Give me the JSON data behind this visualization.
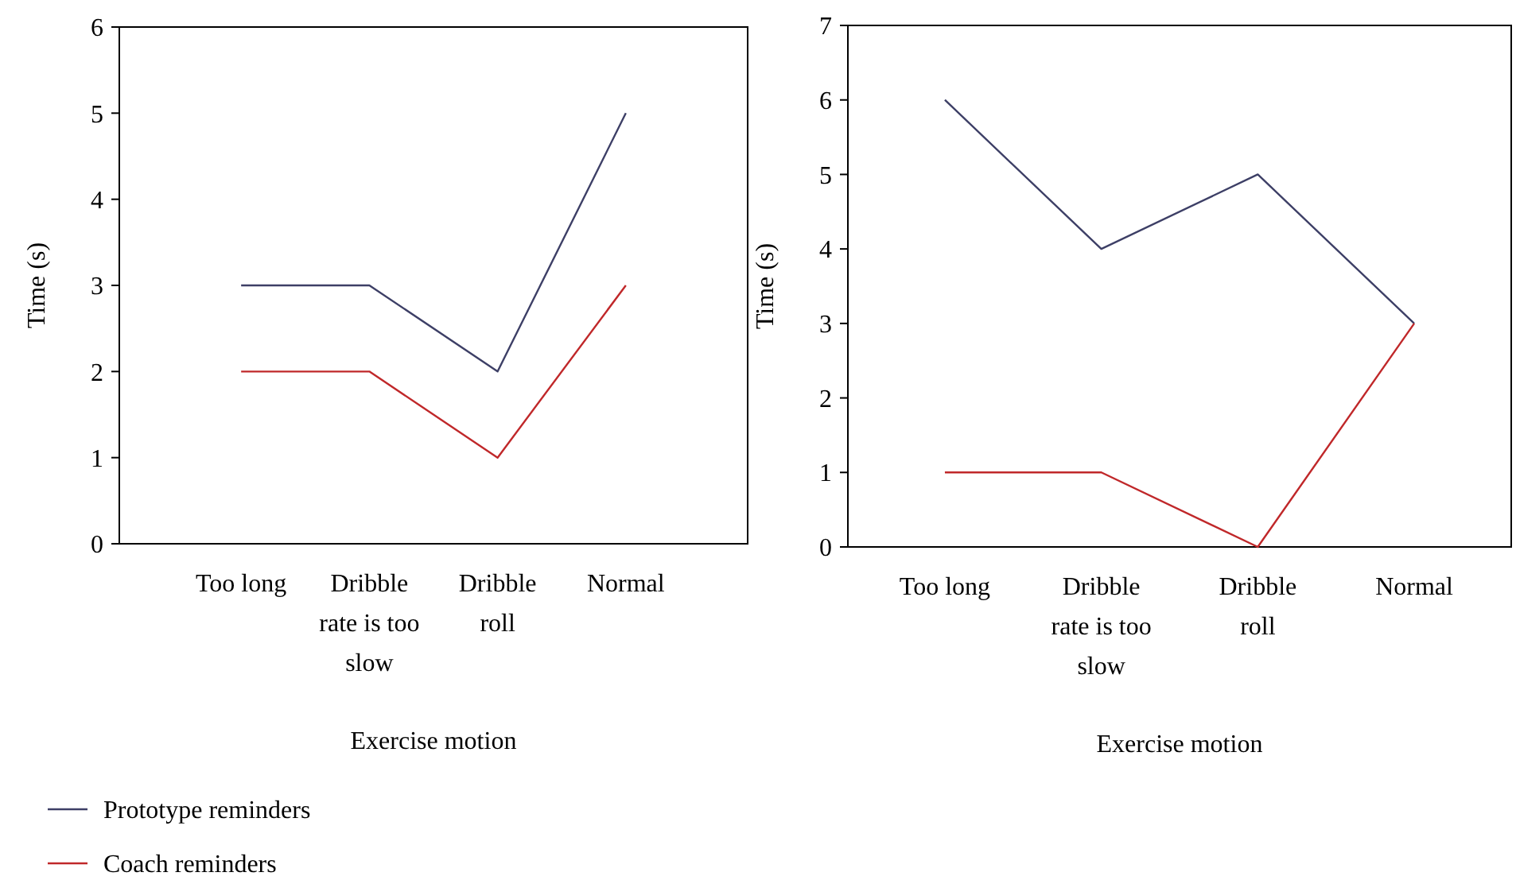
{
  "chart_data": [
    {
      "type": "line",
      "xlabel": "Exercise motion",
      "ylabel": "Time (s)",
      "categories": [
        "Too long",
        "Dribble rate is too slow",
        "Dribble roll",
        "Normal"
      ],
      "ylim": [
        0,
        6
      ],
      "yticks": [
        0,
        1,
        2,
        3,
        4,
        5,
        6
      ],
      "grid": false,
      "legend": "bottom",
      "marker": "none",
      "series": [
        {
          "name": "Prototype reminders",
          "color": "#3d3f66",
          "values": [
            3,
            3,
            2,
            5
          ]
        },
        {
          "name": "Coach reminders",
          "color": "#c0282a",
          "values": [
            2,
            2,
            1,
            3
          ]
        }
      ]
    },
    {
      "type": "line",
      "xlabel": "Exercise motion",
      "ylabel": "Time (s)",
      "categories": [
        "Too long",
        "Dribble rate is too slow",
        "Dribble roll",
        "Normal"
      ],
      "ylim": [
        0,
        7
      ],
      "yticks": [
        0,
        1,
        2,
        3,
        4,
        5,
        6,
        7
      ],
      "grid": false,
      "legend": false,
      "marker": "none",
      "series": [
        {
          "color": "#3d3f66",
          "values": [
            6,
            4,
            5,
            3
          ]
        },
        {
          "color": "#c0282a",
          "values": [
            1,
            1,
            0,
            3
          ]
        }
      ]
    }
  ]
}
